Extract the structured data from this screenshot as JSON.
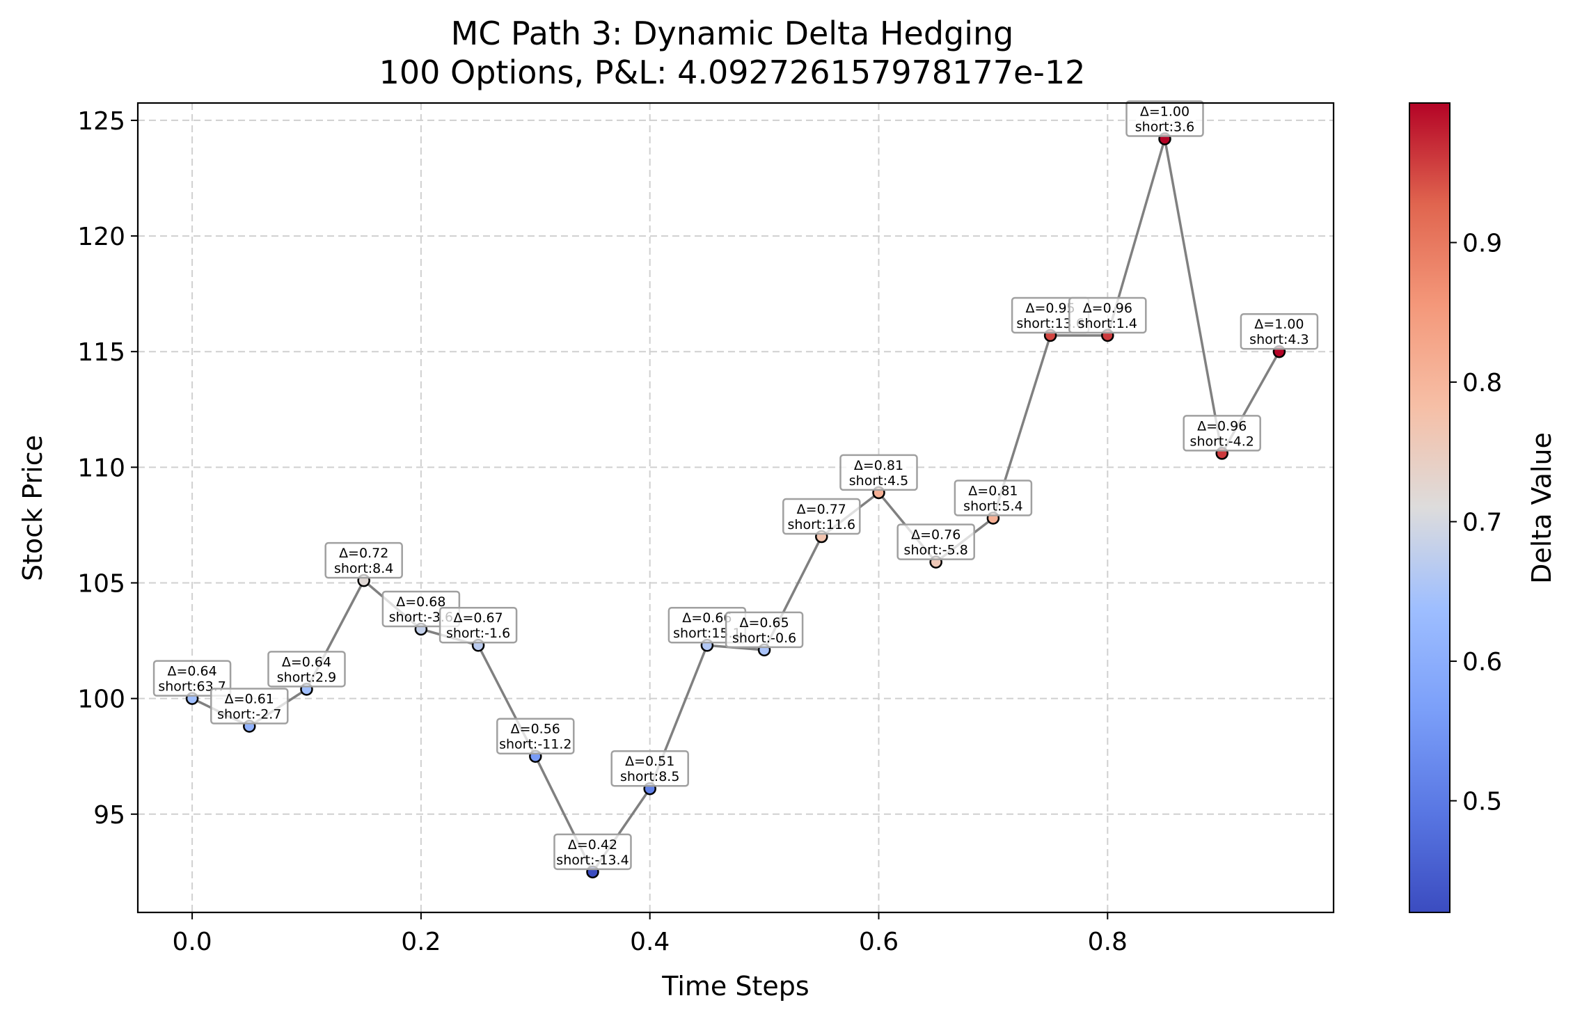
{
  "chart_data": {
    "type": "scatter",
    "title": "MC Path 3: Dynamic Delta Hedging",
    "subtitle": "100 Options, P&L: 4.092726157978177e-12",
    "xlabel": "Time Steps",
    "ylabel": "Stock Price",
    "xlim": [
      -0.0475,
      0.9975
    ],
    "ylim": [
      90.75,
      125.75
    ],
    "xticks": [
      0.0,
      0.2,
      0.4,
      0.6,
      0.8
    ],
    "xtick_labels": [
      "0.0",
      "0.2",
      "0.4",
      "0.6",
      "0.8"
    ],
    "yticks": [
      95,
      100,
      105,
      110,
      115,
      120,
      125
    ],
    "ytick_labels": [
      "95",
      "100",
      "105",
      "110",
      "115",
      "120",
      "125"
    ],
    "grid": true,
    "line_color": "#808080",
    "colormap": "coolwarm",
    "colorbar": {
      "label": "Delta Value",
      "range": [
        0.42,
        1.0
      ],
      "ticks": [
        0.5,
        0.6,
        0.7,
        0.8,
        0.9
      ],
      "tick_labels": [
        "0.5",
        "0.6",
        "0.7",
        "0.8",
        "0.9"
      ]
    },
    "points": [
      {
        "t": 0.0,
        "price": 100.0,
        "delta": 0.64,
        "label1": "Δ=0.64",
        "label2": "short:63.7"
      },
      {
        "t": 0.05,
        "price": 98.8,
        "delta": 0.61,
        "label1": "Δ=0.61",
        "label2": "short:-2.7"
      },
      {
        "t": 0.1,
        "price": 100.4,
        "delta": 0.64,
        "label1": "Δ=0.64",
        "label2": "short:2.9"
      },
      {
        "t": 0.15,
        "price": 105.1,
        "delta": 0.72,
        "label1": "Δ=0.72",
        "label2": "short:8.4"
      },
      {
        "t": 0.2,
        "price": 103.0,
        "delta": 0.68,
        "label1": "Δ=0.68",
        "label2": "short:-3.6"
      },
      {
        "t": 0.25,
        "price": 102.3,
        "delta": 0.67,
        "label1": "Δ=0.67",
        "label2": "short:-1.6"
      },
      {
        "t": 0.3,
        "price": 97.5,
        "delta": 0.56,
        "label1": "Δ=0.56",
        "label2": "short:-11.2"
      },
      {
        "t": 0.35,
        "price": 92.5,
        "delta": 0.42,
        "label1": "Δ=0.42",
        "label2": "short:-13.4"
      },
      {
        "t": 0.4,
        "price": 96.1,
        "delta": 0.51,
        "label1": "Δ=0.51",
        "label2": "short:8.5"
      },
      {
        "t": 0.45,
        "price": 102.3,
        "delta": 0.66,
        "label1": "Δ=0.66",
        "label2": "short:15.1"
      },
      {
        "t": 0.5,
        "price": 102.1,
        "delta": 0.65,
        "label1": "Δ=0.65",
        "label2": "short:-0.6"
      },
      {
        "t": 0.55,
        "price": 107.0,
        "delta": 0.77,
        "label1": "Δ=0.77",
        "label2": "short:11.6"
      },
      {
        "t": 0.6,
        "price": 108.9,
        "delta": 0.81,
        "label1": "Δ=0.81",
        "label2": "short:4.5"
      },
      {
        "t": 0.65,
        "price": 105.9,
        "delta": 0.76,
        "label1": "Δ=0.76",
        "label2": "short:-5.8"
      },
      {
        "t": 0.7,
        "price": 107.8,
        "delta": 0.81,
        "label1": "Δ=0.81",
        "label2": "short:5.4"
      },
      {
        "t": 0.75,
        "price": 115.7,
        "delta": 0.95,
        "label1": "Δ=0.95",
        "label2": "short:13.6"
      },
      {
        "t": 0.8,
        "price": 115.7,
        "delta": 0.96,
        "label1": "Δ=0.96",
        "label2": "short:1.4"
      },
      {
        "t": 0.85,
        "price": 124.2,
        "delta": 1.0,
        "label1": "Δ=1.00",
        "label2": "short:3.6"
      },
      {
        "t": 0.9,
        "price": 110.6,
        "delta": 0.96,
        "label1": "Δ=0.96",
        "label2": "short:-4.2"
      },
      {
        "t": 0.95,
        "price": 115.0,
        "delta": 1.0,
        "label1": "Δ=1.00",
        "label2": "short:4.3"
      }
    ]
  }
}
